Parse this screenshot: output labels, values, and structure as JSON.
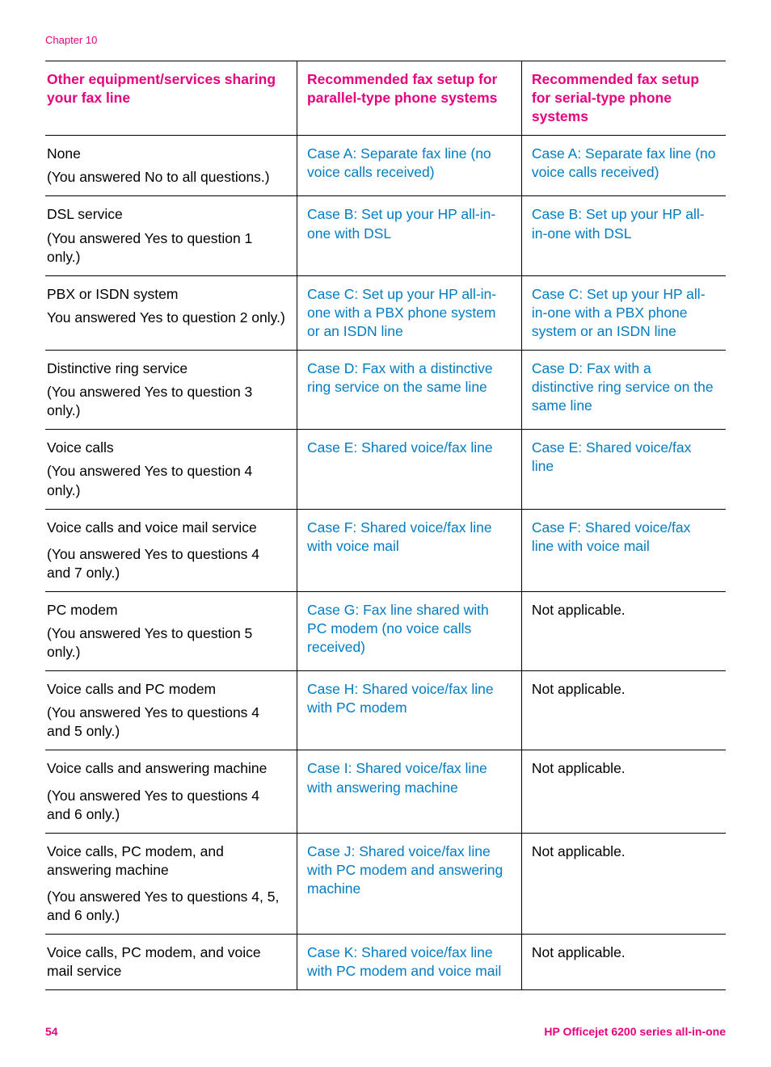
{
  "chapter": "Chapter 10",
  "footer": {
    "page": "54",
    "model": "HP Officejet 6200 series all-in-one"
  },
  "colors": {
    "accent": "#e6007e",
    "link": "#007cc3",
    "border": "#000000",
    "text": "#000000",
    "bg": "#ffffff"
  },
  "table": {
    "columns": [
      "Other equipment/services sharing your fax line",
      "Recommended fax setup for parallel-type phone systems",
      "Recommended fax setup for serial-type phone systems"
    ],
    "rows": [
      {
        "c1_main": "None",
        "c1_sub": "(You answered No to all questions.)",
        "c2": "Case A: Separate fax line (no voice calls received)",
        "c2_link": true,
        "c3": "Case A: Separate fax line (no voice calls received)",
        "c3_link": true
      },
      {
        "c1_main": "DSL service",
        "c1_sub": "(You answered Yes to question 1 only.)",
        "c2": "Case B: Set up your HP all-in-one with DSL",
        "c2_link": true,
        "c3": "Case B: Set up your HP all-in-one with DSL",
        "c3_link": true
      },
      {
        "c1_main": "PBX or ISDN system",
        "c1_sub": "You answered Yes to question 2 only.)",
        "c2": "Case C: Set up your HP all-in-one with a PBX phone system or an ISDN line",
        "c2_link": true,
        "c3": "Case C: Set up your HP all-in-one with a PBX phone system or an ISDN line",
        "c3_link": true
      },
      {
        "c1_main": "Distinctive ring service",
        "c1_sub": "(You answered Yes to question 3 only.)",
        "c2": "Case D: Fax with a distinctive ring service on the same line",
        "c2_link": true,
        "c3": "Case D: Fax with a distinctive ring service on the same line",
        "c3_link": true
      },
      {
        "c1_main": "Voice calls",
        "c1_sub": "(You answered Yes to question 4 only.)",
        "c2": "Case E: Shared voice/fax line",
        "c2_link": true,
        "c3": "Case E: Shared voice/fax line",
        "c3_link": true
      },
      {
        "c1_main": "Voice calls and voice mail service",
        "c1_sub": "(You answered Yes to questions 4 and 7 only.)",
        "c2": "Case F: Shared voice/fax line with voice mail",
        "c2_link": true,
        "c3": "Case F: Shared voice/fax line with voice mail",
        "c3_link": true
      },
      {
        "c1_main": "PC modem",
        "c1_sub": "(You answered Yes to question 5 only.)",
        "c2": "Case G: Fax line shared with PC modem (no voice calls received)",
        "c2_link": true,
        "c3": "Not applicable.",
        "c3_link": false
      },
      {
        "c1_main": "Voice calls and PC modem",
        "c1_sub": "(You answered Yes to questions 4 and 5 only.)",
        "c2": "Case H: Shared voice/fax line with PC modem",
        "c2_link": true,
        "c3": "Not applicable.",
        "c3_link": false
      },
      {
        "c1_main": "Voice calls and answering machine",
        "c1_sub": "(You answered Yes to questions 4 and 6 only.)",
        "c2": "Case I: Shared voice/fax line with answering machine",
        "c2_link": true,
        "c3": "Not applicable.",
        "c3_link": false
      },
      {
        "c1_main": "Voice calls, PC modem, and answering machine",
        "c1_sub": "(You answered Yes to questions 4, 5, and 6 only.)",
        "c2": "Case J: Shared voice/fax line with PC modem and answering machine",
        "c2_link": true,
        "c3": "Not applicable.",
        "c3_link": false
      },
      {
        "c1_main": "Voice calls, PC modem, and voice mail service",
        "c1_sub": "",
        "c2": "Case K: Shared voice/fax line with PC modem and voice mail",
        "c2_link": true,
        "c3": "Not applicable.",
        "c3_link": false
      }
    ]
  }
}
